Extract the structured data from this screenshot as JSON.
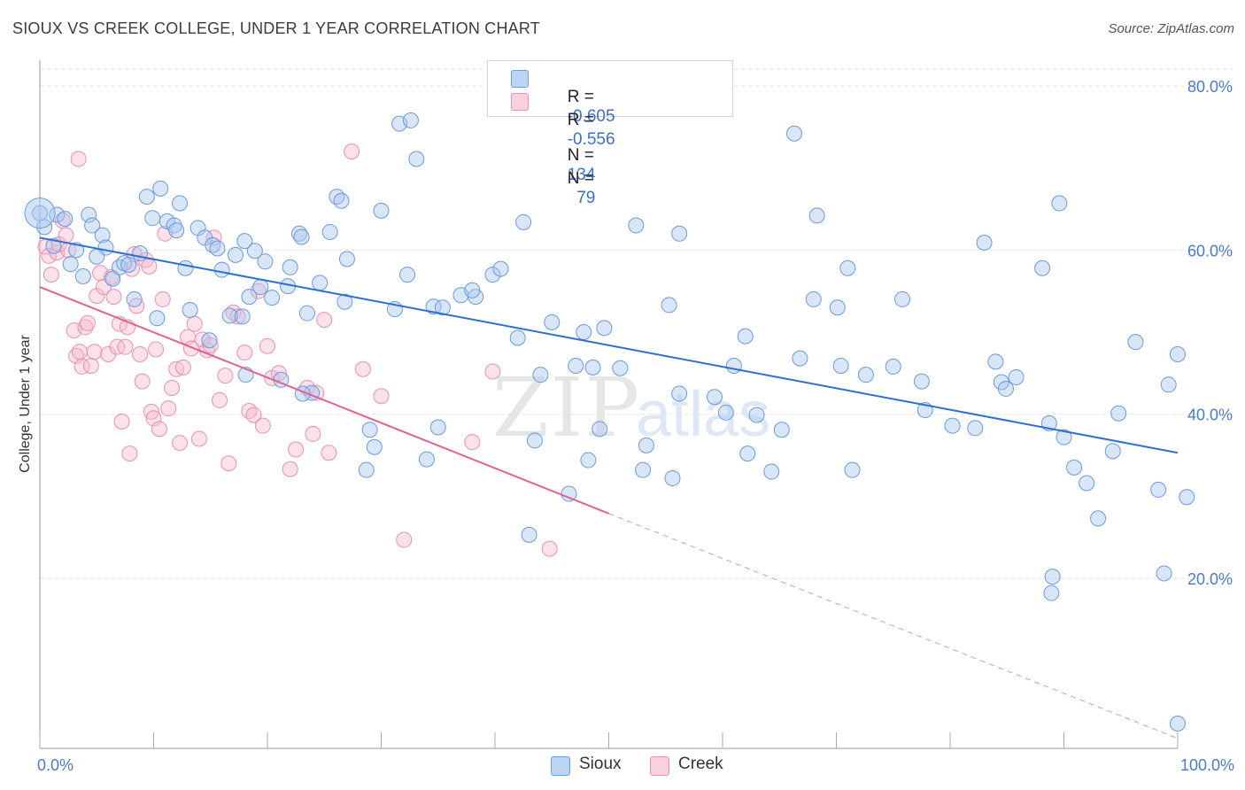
{
  "header": {
    "title": "SIOUX VS CREEK COLLEGE, UNDER 1 YEAR CORRELATION CHART",
    "source": "Source: ZipAtlas.com"
  },
  "legend": {
    "sioux": {
      "r_label": "R =",
      "r_value": "-0.605",
      "n_label": "N =",
      "n_value": "134"
    },
    "creek": {
      "r_label": "R =",
      "r_value": "-0.556",
      "n_label": "N =",
      "n_value": "79"
    }
  },
  "bottom_legend": {
    "sioux": "Sioux",
    "creek": "Creek"
  },
  "colors": {
    "sioux_fill": "#a8c8f0",
    "sioux_stroke": "#6a9be0",
    "sioux_line": "#2f6fd0",
    "creek_fill": "#f7bcd0",
    "creek_stroke": "#ee8fb0",
    "creek_line": "#e0628e",
    "grid": "#e2e2e2",
    "tick_text": "#4a7bd0"
  },
  "chart_data": {
    "type": "scatter",
    "title": "SIOUX VS CREEK COLLEGE, UNDER 1 YEAR CORRELATION CHART",
    "xlabel": "",
    "ylabel": "College, Under 1 year",
    "xlim": [
      0,
      100
    ],
    "ylim": [
      0,
      82
    ],
    "x_tick_labels": [
      "0.0%",
      "100.0%"
    ],
    "y_ticks": [
      20,
      40,
      60,
      80
    ],
    "y_tick_labels": [
      "20.0%",
      "40.0%",
      "60.0%",
      "80.0%"
    ],
    "watermark": "ZIPatlas",
    "series": [
      {
        "name": "Sioux",
        "r": -0.605,
        "n": 134,
        "trend": {
          "x": [
            0,
            100
          ],
          "y": [
            61.5,
            35.3
          ]
        },
        "points": [
          [
            0.0,
            64.5
          ],
          [
            0.4,
            62.8
          ],
          [
            1.2,
            60.5
          ],
          [
            1.5,
            64.3
          ],
          [
            2.2,
            63.8
          ],
          [
            2.7,
            58.3
          ],
          [
            3.2,
            60.0
          ],
          [
            3.8,
            56.8
          ],
          [
            4.3,
            64.3
          ],
          [
            4.6,
            63.0
          ],
          [
            5.5,
            61.8
          ],
          [
            5.8,
            60.3
          ],
          [
            6.4,
            56.5
          ],
          [
            7.0,
            57.9
          ],
          [
            7.4,
            58.4
          ],
          [
            7.8,
            58.2
          ],
          [
            8.3,
            54.0
          ],
          [
            8.8,
            59.6
          ],
          [
            9.4,
            66.5
          ],
          [
            9.9,
            63.9
          ],
          [
            10.3,
            51.7
          ],
          [
            10.6,
            67.5
          ],
          [
            11.2,
            63.5
          ],
          [
            11.8,
            63.0
          ],
          [
            12.3,
            65.7
          ],
          [
            12.8,
            57.8
          ],
          [
            13.2,
            52.7
          ],
          [
            13.9,
            62.7
          ],
          [
            14.5,
            61.5
          ],
          [
            14.9,
            49.0
          ],
          [
            15.2,
            60.6
          ],
          [
            15.6,
            60.2
          ],
          [
            16.0,
            57.6
          ],
          [
            16.7,
            52.0
          ],
          [
            17.2,
            59.4
          ],
          [
            17.8,
            51.9
          ],
          [
            18.1,
            44.8
          ],
          [
            18.4,
            54.3
          ],
          [
            18.9,
            59.9
          ],
          [
            19.4,
            55.5
          ],
          [
            19.8,
            58.6
          ],
          [
            20.4,
            54.2
          ],
          [
            21.2,
            44.2
          ],
          [
            21.8,
            55.6
          ],
          [
            22.0,
            57.9
          ],
          [
            22.8,
            62.0
          ],
          [
            23.0,
            61.6
          ],
          [
            23.5,
            52.3
          ],
          [
            23.9,
            42.6
          ],
          [
            24.6,
            56.0
          ],
          [
            25.5,
            62.2
          ],
          [
            26.1,
            66.5
          ],
          [
            26.5,
            66.0
          ],
          [
            26.8,
            53.7
          ],
          [
            29.0,
            38.1
          ],
          [
            29.4,
            36.0
          ],
          [
            28.7,
            33.2
          ],
          [
            30.0,
            64.8
          ],
          [
            31.2,
            52.8
          ],
          [
            31.6,
            75.4
          ],
          [
            32.3,
            57.0
          ],
          [
            32.6,
            75.8
          ],
          [
            33.1,
            71.1
          ],
          [
            34.0,
            34.5
          ],
          [
            34.6,
            53.1
          ],
          [
            35.0,
            38.4
          ],
          [
            35.4,
            53.0
          ],
          [
            37.0,
            54.5
          ],
          [
            38.3,
            54.3
          ],
          [
            39.8,
            57.0
          ],
          [
            40.5,
            57.7
          ],
          [
            42.0,
            49.3
          ],
          [
            42.5,
            63.4
          ],
          [
            43.0,
            25.3
          ],
          [
            43.5,
            36.8
          ],
          [
            44.0,
            44.8
          ],
          [
            46.5,
            30.3
          ],
          [
            47.1,
            45.9
          ],
          [
            47.8,
            50.0
          ],
          [
            48.2,
            34.4
          ],
          [
            48.6,
            45.7
          ],
          [
            49.2,
            38.2
          ],
          [
            49.6,
            50.5
          ],
          [
            51.0,
            45.6
          ],
          [
            52.4,
            63.0
          ],
          [
            53.0,
            33.2
          ],
          [
            53.3,
            36.2
          ],
          [
            55.3,
            53.3
          ],
          [
            55.6,
            32.2
          ],
          [
            56.2,
            42.5
          ],
          [
            56.2,
            62.0
          ],
          [
            59.3,
            42.1
          ],
          [
            60.3,
            40.2
          ],
          [
            61.0,
            45.9
          ],
          [
            62.2,
            35.2
          ],
          [
            63.0,
            39.9
          ],
          [
            64.3,
            33.0
          ],
          [
            65.2,
            38.1
          ],
          [
            66.3,
            74.2
          ],
          [
            66.8,
            46.8
          ],
          [
            68.0,
            54.0
          ],
          [
            68.3,
            64.2
          ],
          [
            70.1,
            53.0
          ],
          [
            70.4,
            45.9
          ],
          [
            71.0,
            57.8
          ],
          [
            71.4,
            33.2
          ],
          [
            72.6,
            44.8
          ],
          [
            75.0,
            45.8
          ],
          [
            75.8,
            54.0
          ],
          [
            77.5,
            44.0
          ],
          [
            77.8,
            40.5
          ],
          [
            80.2,
            38.6
          ],
          [
            82.2,
            38.3
          ],
          [
            83.0,
            60.9
          ],
          [
            84.0,
            46.4
          ],
          [
            84.5,
            43.9
          ],
          [
            84.9,
            43.1
          ],
          [
            85.8,
            44.5
          ],
          [
            88.1,
            57.8
          ],
          [
            88.7,
            38.9
          ],
          [
            88.9,
            18.2
          ],
          [
            89.0,
            20.2
          ],
          [
            89.6,
            65.7
          ],
          [
            90.0,
            37.2
          ],
          [
            90.9,
            33.5
          ],
          [
            92.0,
            31.6
          ],
          [
            93.0,
            27.3
          ],
          [
            94.3,
            35.5
          ],
          [
            94.8,
            40.1
          ],
          [
            96.3,
            48.8
          ],
          [
            98.3,
            30.8
          ],
          [
            100.0,
            2.3
          ],
          [
            98.8,
            20.6
          ],
          [
            99.2,
            43.6
          ],
          [
            100.0,
            47.3
          ],
          [
            100.8,
            29.9
          ],
          [
            23.1,
            42.5
          ],
          [
            38.0,
            55.1
          ],
          [
            12.0,
            62.4
          ],
          [
            5.0,
            59.2
          ],
          [
            18.0,
            61.1
          ],
          [
            27.0,
            58.9
          ],
          [
            45.0,
            51.2
          ],
          [
            62.0,
            49.5
          ]
        ]
      },
      {
        "name": "Creek",
        "r": -0.556,
        "n": 79,
        "trend": {
          "x": [
            0,
            50
          ],
          "y": [
            55.5,
            27.9
          ]
        },
        "trend_dashed": {
          "x": [
            50,
            100
          ],
          "y": [
            27.9,
            0.5
          ]
        },
        "points": [
          [
            0.5,
            60.4
          ],
          [
            0.8,
            59.3
          ],
          [
            1.0,
            57.0
          ],
          [
            1.5,
            59.7
          ],
          [
            1.7,
            60.7
          ],
          [
            2.0,
            63.6
          ],
          [
            2.3,
            61.8
          ],
          [
            2.5,
            60.0
          ],
          [
            3.0,
            50.2
          ],
          [
            3.2,
            47.1
          ],
          [
            3.5,
            47.6
          ],
          [
            3.7,
            45.8
          ],
          [
            3.4,
            71.1
          ],
          [
            4.0,
            50.6
          ],
          [
            4.2,
            51.1
          ],
          [
            4.5,
            45.9
          ],
          [
            4.8,
            47.6
          ],
          [
            5.0,
            54.4
          ],
          [
            5.3,
            57.2
          ],
          [
            5.6,
            55.5
          ],
          [
            6.0,
            47.3
          ],
          [
            6.3,
            56.7
          ],
          [
            6.5,
            54.3
          ],
          [
            6.8,
            48.2
          ],
          [
            7.0,
            51.0
          ],
          [
            7.2,
            39.1
          ],
          [
            7.5,
            48.2
          ],
          [
            7.7,
            50.6
          ],
          [
            7.9,
            35.2
          ],
          [
            8.1,
            57.7
          ],
          [
            8.3,
            59.5
          ],
          [
            8.5,
            53.2
          ],
          [
            8.8,
            47.3
          ],
          [
            9.0,
            44.0
          ],
          [
            9.3,
            58.8
          ],
          [
            9.6,
            58.0
          ],
          [
            9.8,
            40.3
          ],
          [
            10.0,
            39.5
          ],
          [
            10.2,
            47.9
          ],
          [
            10.5,
            38.2
          ],
          [
            10.8,
            54.0
          ],
          [
            11.0,
            62.0
          ],
          [
            11.3,
            40.7
          ],
          [
            11.6,
            43.2
          ],
          [
            12.0,
            45.5
          ],
          [
            12.3,
            36.5
          ],
          [
            12.6,
            45.7
          ],
          [
            13.0,
            49.4
          ],
          [
            13.3,
            48.0
          ],
          [
            13.6,
            51.0
          ],
          [
            14.0,
            37.0
          ],
          [
            14.3,
            49.1
          ],
          [
            14.7,
            47.8
          ],
          [
            15.0,
            48.4
          ],
          [
            15.3,
            61.5
          ],
          [
            15.8,
            41.7
          ],
          [
            16.3,
            44.7
          ],
          [
            16.6,
            34.0
          ],
          [
            17.0,
            52.4
          ],
          [
            17.4,
            51.9
          ],
          [
            18.0,
            47.5
          ],
          [
            18.4,
            40.4
          ],
          [
            18.8,
            39.9
          ],
          [
            19.2,
            55.0
          ],
          [
            19.6,
            38.6
          ],
          [
            20.0,
            48.3
          ],
          [
            20.4,
            44.4
          ],
          [
            21.0,
            45.0
          ],
          [
            22.0,
            33.3
          ],
          [
            22.5,
            35.7
          ],
          [
            23.5,
            43.2
          ],
          [
            24.0,
            37.6
          ],
          [
            24.3,
            42.6
          ],
          [
            25.0,
            51.5
          ],
          [
            25.4,
            35.3
          ],
          [
            27.4,
            72.0
          ],
          [
            28.4,
            45.5
          ],
          [
            30.0,
            42.2
          ],
          [
            32.0,
            24.7
          ],
          [
            38.0,
            36.6
          ],
          [
            39.8,
            45.2
          ],
          [
            44.8,
            23.6
          ]
        ]
      }
    ]
  }
}
